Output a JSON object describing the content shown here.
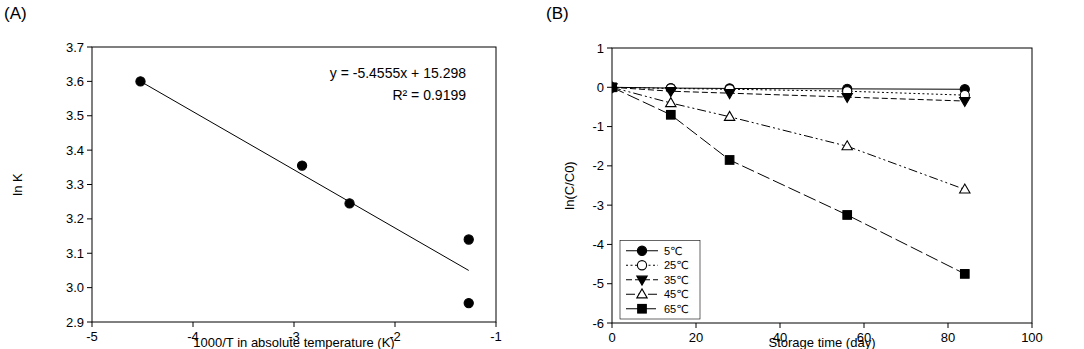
{
  "chart_data": [
    {
      "type": "scatter",
      "panel": "(A)",
      "x_label": "1000/T in absolute temperature (K)",
      "y_label": "ln K",
      "annotations": [
        "y = -5.4555x + 15.298",
        "R² = 0.9199"
      ],
      "xlim": [
        -5,
        -1
      ],
      "ylim": [
        2.9,
        3.7
      ],
      "xticks": [
        -5,
        -4,
        -3,
        -2,
        -1
      ],
      "yticks": [
        2.9,
        {
          "value": 3,
          "label": "3.0"
        },
        3.1,
        3.2,
        3.3,
        3.4,
        3.5,
        3.6,
        3.7
      ],
      "series": [
        {
          "type": "scatter",
          "color": "#000000",
          "marker": "circle",
          "x": [
            -4.52,
            -2.92,
            -2.45,
            -1.27,
            -1.27
          ],
          "values": [
            3.6,
            3.355,
            3.245,
            3.14,
            2.955
          ]
        },
        {
          "type": "line",
          "color": "#000000",
          "line_style": "solid",
          "x": [
            -4.52,
            -1.27
          ],
          "values": [
            3.6,
            3.05
          ]
        }
      ]
    },
    {
      "type": "line",
      "panel": "(B)",
      "x_label": "Storage time (day)",
      "y_label": "ln(C/C0)",
      "xlim": [
        0,
        100
      ],
      "ylim": [
        -6,
        1
      ],
      "xticks": [
        0,
        20,
        40,
        60,
        80,
        100
      ],
      "yticks": [
        -6,
        -5,
        -4,
        -3,
        -2,
        -1,
        0,
        1
      ],
      "legend": "lower left",
      "x": [
        0,
        14,
        28,
        56,
        84
      ],
      "series": [
        {
          "name": "5℃",
          "color": "#000000",
          "marker": "circle",
          "line_style": "solid",
          "values": [
            0,
            -0.02,
            -0.03,
            -0.04,
            -0.05
          ]
        },
        {
          "name": "25℃",
          "color": "#000000",
          "marker": "circle-open",
          "line_style": "dotted",
          "values": [
            0,
            -0.03,
            -0.05,
            -0.1,
            -0.2
          ]
        },
        {
          "name": "35℃",
          "color": "#000000",
          "marker": "triangle-down",
          "line_style": "dashed",
          "values": [
            0,
            -0.1,
            -0.15,
            -0.25,
            -0.35
          ]
        },
        {
          "name": "45℃",
          "color": "#000000",
          "marker": "triangle-open",
          "line_style": "dash-dot-dot",
          "values": [
            0,
            -0.4,
            -0.75,
            -1.5,
            -2.6
          ]
        },
        {
          "name": "65℃",
          "color": "#000000",
          "marker": "square",
          "line_style": "long-dash",
          "values": [
            0,
            -0.7,
            -1.85,
            -3.25,
            -4.75
          ]
        }
      ]
    }
  ]
}
